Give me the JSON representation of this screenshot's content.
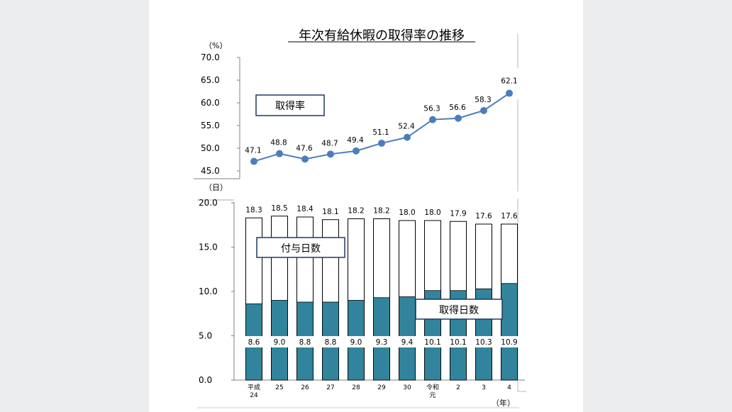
{
  "chart_data": [
    {
      "type": "line",
      "title": "年次有給休暇の取得率の推移",
      "unit_label": "（%）",
      "series": [
        {
          "name": "取得率",
          "values": [
            47.1,
            48.8,
            47.6,
            48.7,
            49.4,
            51.1,
            52.4,
            56.3,
            56.6,
            58.3,
            62.1
          ]
        }
      ],
      "ylim": [
        45.0,
        70.0
      ],
      "yticks": [
        "70.0",
        "65.0",
        "60.0",
        "55.0",
        "50.0",
        "45.0"
      ],
      "line_color": "#4a7ebb"
    },
    {
      "type": "bar",
      "unit_label": "（日）",
      "categories": [
        "平成24",
        "25",
        "26",
        "27",
        "28",
        "29",
        "30",
        "令和元",
        "2",
        "3",
        "4"
      ],
      "x_tick_lines": [
        [
          "平成",
          "24"
        ],
        [
          "25"
        ],
        [
          "26"
        ],
        [
          "27"
        ],
        [
          "28"
        ],
        [
          "29"
        ],
        [
          "30"
        ],
        [
          "令和",
          "元"
        ],
        [
          "2"
        ],
        [
          "3"
        ],
        [
          "4"
        ]
      ],
      "x_unit_label": "（年）",
      "series": [
        {
          "name": "付与日数",
          "values": [
            18.3,
            18.5,
            18.4,
            18.1,
            18.2,
            18.2,
            18.0,
            18.0,
            17.9,
            17.6,
            17.6
          ]
        },
        {
          "name": "取得日数",
          "values": [
            8.6,
            9.0,
            8.8,
            8.8,
            9.0,
            9.3,
            9.4,
            10.1,
            10.1,
            10.3,
            10.9
          ]
        }
      ],
      "ylim": [
        0.0,
        20.0
      ],
      "yticks": [
        "20.0",
        "15.0",
        "10.0",
        "5.0",
        "0.0"
      ],
      "granted_color": "#ffffff",
      "taken_color": "#31849b"
    }
  ]
}
